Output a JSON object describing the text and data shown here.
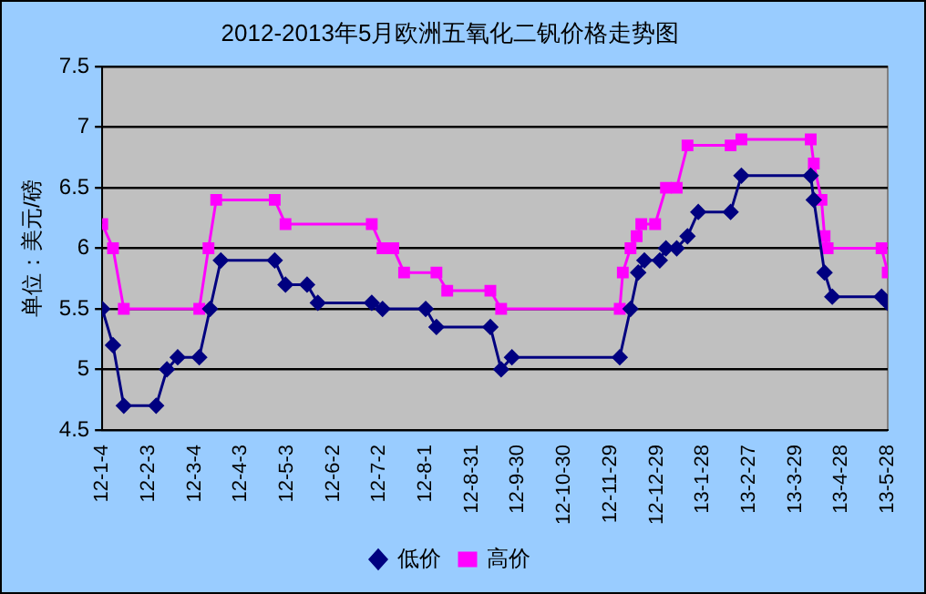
{
  "chart_data": {
    "type": "line",
    "title": "2012-2013年5月欧洲五氧化二钒价格走势图",
    "ylabel": "单位：美元/磅",
    "xlim": [
      "2012-01-04",
      "2013-05-28"
    ],
    "xticks": [
      {
        "value": "2012-01-04",
        "label": "12-1-4"
      },
      {
        "value": "2012-02-03",
        "label": "12-2-3"
      },
      {
        "value": "2012-03-04",
        "label": "12-3-4"
      },
      {
        "value": "2012-04-03",
        "label": "12-4-3"
      },
      {
        "value": "2012-05-03",
        "label": "12-5-3"
      },
      {
        "value": "2012-06-02",
        "label": "12-6-2"
      },
      {
        "value": "2012-07-02",
        "label": "12-7-2"
      },
      {
        "value": "2012-08-01",
        "label": "12-8-1"
      },
      {
        "value": "2012-08-31",
        "label": "12-8-31"
      },
      {
        "value": "2012-09-30",
        "label": "12-9-30"
      },
      {
        "value": "2012-10-30",
        "label": "12-10-30"
      },
      {
        "value": "2012-11-29",
        "label": "12-11-29"
      },
      {
        "value": "2012-12-29",
        "label": "12-12-29"
      },
      {
        "value": "2013-01-28",
        "label": "13-1-28"
      },
      {
        "value": "2013-02-27",
        "label": "13-2-27"
      },
      {
        "value": "2013-03-29",
        "label": "13-3-29"
      },
      {
        "value": "2013-04-28",
        "label": "13-4-28"
      },
      {
        "value": "2013-05-28",
        "label": "13-5-28"
      }
    ],
    "ylim": [
      4.5,
      7.5
    ],
    "yticks": [
      4.5,
      5,
      5.5,
      6,
      6.5,
      7,
      7.5
    ],
    "grid": "y",
    "legend": "bottom",
    "line_style": "solid",
    "series": [
      {
        "name": "低价",
        "color": "#000080",
        "marker": "diamond",
        "x": [
          "2012-01-04",
          "2012-01-11",
          "2012-01-18",
          "2012-02-08",
          "2012-02-15",
          "2012-02-22",
          "2012-03-07",
          "2012-03-14",
          "2012-03-21",
          "2012-04-25",
          "2012-05-02",
          "2012-05-16",
          "2012-05-23",
          "2012-06-27",
          "2012-07-04",
          "2012-08-01",
          "2012-08-08",
          "2012-09-12",
          "2012-09-19",
          "2012-09-26",
          "2012-12-05",
          "2012-12-12",
          "2012-12-17",
          "2012-12-21",
          "2012-12-31",
          "2013-01-04",
          "2013-01-11",
          "2013-01-18",
          "2013-01-25",
          "2013-02-15",
          "2013-02-22",
          "2013-04-08",
          "2013-04-10",
          "2013-04-17",
          "2013-04-22",
          "2013-05-24",
          "2013-05-28"
        ],
        "values": [
          5.5,
          5.2,
          4.7,
          4.7,
          5.0,
          5.1,
          5.1,
          5.5,
          5.9,
          5.9,
          5.7,
          5.7,
          5.55,
          5.55,
          5.5,
          5.5,
          5.35,
          5.35,
          5.0,
          5.1,
          5.1,
          5.5,
          5.8,
          5.9,
          5.9,
          6.0,
          6.0,
          6.1,
          6.3,
          6.3,
          6.6,
          6.6,
          6.4,
          5.8,
          5.6,
          5.6,
          5.55
        ]
      },
      {
        "name": "高价",
        "color": "#ff00ff",
        "marker": "square",
        "x": [
          "2012-01-04",
          "2012-01-11",
          "2012-01-18",
          "2012-03-07",
          "2012-03-13",
          "2012-03-18",
          "2012-04-25",
          "2012-05-02",
          "2012-06-27",
          "2012-07-04",
          "2012-07-11",
          "2012-07-18",
          "2012-08-08",
          "2012-08-15",
          "2012-09-12",
          "2012-09-19",
          "2012-12-05",
          "2012-12-07",
          "2012-12-12",
          "2012-12-16",
          "2012-12-19",
          "2012-12-28",
          "2013-01-04",
          "2013-01-11",
          "2013-01-18",
          "2013-02-15",
          "2013-02-22",
          "2013-04-08",
          "2013-04-10",
          "2013-04-15",
          "2013-04-17",
          "2013-04-19",
          "2013-05-24",
          "2013-05-28"
        ],
        "values": [
          6.2,
          6.0,
          5.5,
          5.5,
          6.0,
          6.4,
          6.4,
          6.2,
          6.2,
          6.0,
          6.0,
          5.8,
          5.8,
          5.65,
          5.65,
          5.5,
          5.5,
          5.8,
          6.0,
          6.1,
          6.2,
          6.2,
          6.5,
          6.5,
          6.85,
          6.85,
          6.9,
          6.9,
          6.7,
          6.4,
          6.1,
          6.0,
          6.0,
          5.8
        ]
      }
    ]
  }
}
